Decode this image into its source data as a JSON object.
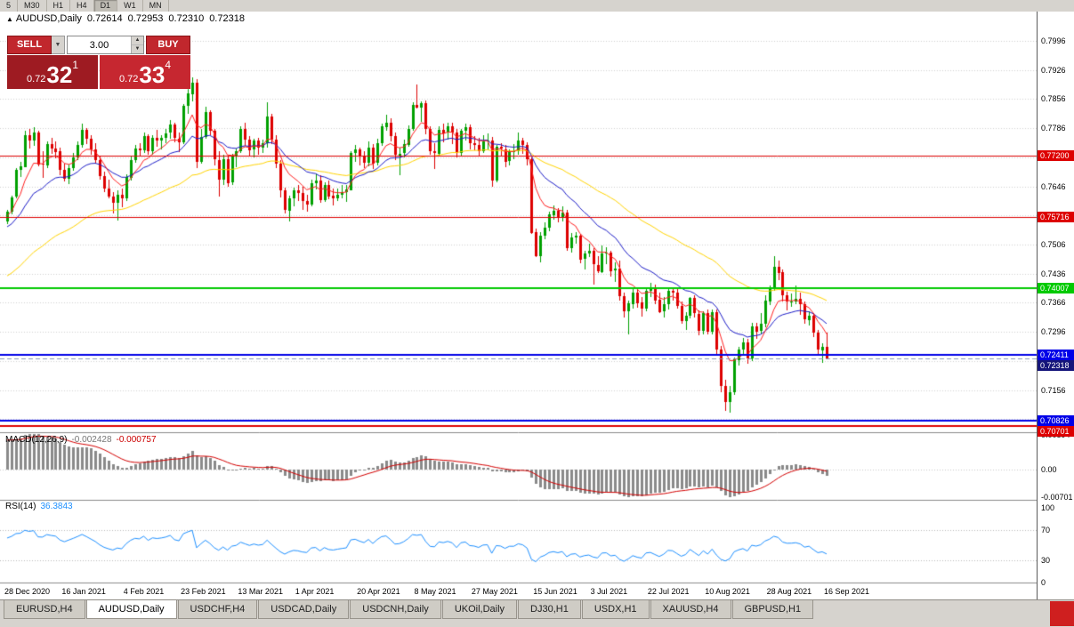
{
  "toolbar": {
    "timeframes": [
      "5",
      "M30",
      "H1",
      "H4",
      "D1",
      "W1",
      "MN"
    ],
    "active": "D1"
  },
  "chart_header": {
    "expander": "▲",
    "symbol_period": "AUDUSD,Daily",
    "open": "0.72614",
    "high": "0.72953",
    "low": "0.72310",
    "close": "0.72318"
  },
  "one_click": {
    "sell_label": "SELL",
    "buy_label": "BUY",
    "volume": "3.00",
    "dropdown_glyph": "▼",
    "spin_up": "▲",
    "spin_down": "▼",
    "sell_price": {
      "prefix": "0.72",
      "big": "32",
      "sup": "1"
    },
    "buy_price": {
      "prefix": "0.72",
      "big": "33",
      "sup": "4"
    },
    "colors": {
      "sell_tile": "#9e1b22",
      "buy_tile": "#c62730",
      "button": "#c1272d"
    }
  },
  "price_axis": {
    "gridlines": [
      0.7996,
      0.7926,
      0.7856,
      0.7786,
      0.7716,
      0.7646,
      0.7576,
      0.7506,
      0.7436,
      0.7366,
      0.7296,
      0.7226,
      0.7156,
      0.7086
    ]
  },
  "levels": [
    {
      "value": 0.772,
      "label": "0.77200",
      "color": "#dd0000",
      "width": 1
    },
    {
      "value": 0.75716,
      "label": "0.75716",
      "color": "#dd0000",
      "width": 1
    },
    {
      "value": 0.74007,
      "label": "0.74007",
      "color": "#00ca00",
      "width": 2
    },
    {
      "value": 0.72411,
      "label": "0.72411",
      "color": "#0000e8",
      "width": 2
    },
    {
      "value": 0.72318,
      "label": "0.72318",
      "color": "#8899bb",
      "width": 1,
      "dash": true,
      "label_bg": "#15157a",
      "current": true
    },
    {
      "value": 0.70826,
      "label": "0.70826",
      "color": "#0000e8",
      "width": 2
    },
    {
      "value": 0.70701,
      "label": "0.70701",
      "color": "#dd0000",
      "width": 2
    }
  ],
  "indicator_macd": {
    "name": "MACD(12,26,9)",
    "value_main": "-0.002428",
    "value_signal": "-0.000757",
    "axis": [
      {
        "label": "0.00894",
        "value": 0.00894
      },
      {
        "label": "0.00",
        "value": 0
      },
      {
        "label": "-0.00701",
        "value": -0.00701
      }
    ],
    "colors": {
      "histogram": "#8a8a8a",
      "signal": "#d40000"
    }
  },
  "indicator_rsi": {
    "name": "RSI(14)",
    "value": "36.3843",
    "axis": [
      {
        "label": "100",
        "value": 100
      },
      {
        "label": "70",
        "value": 70
      },
      {
        "label": "30",
        "value": 30
      },
      {
        "label": "0",
        "value": 0
      }
    ],
    "levels": [
      70,
      30
    ],
    "color": "#1e90ff"
  },
  "time_axis": {
    "labels": [
      "28 Dec 2020",
      "16 Jan 2021",
      "4 Feb 2021",
      "23 Feb 2021",
      "13 Mar 2021",
      "1 Apr 2021",
      "20 Apr 2021",
      "8 May 2021",
      "27 May 2021",
      "15 Jun 2021",
      "3 Jul 2021",
      "22 Jul 2021",
      "10 Aug 2021",
      "28 Aug 2021",
      "16 Sep 2021"
    ]
  },
  "tabs": {
    "items": [
      "EURUSD,H4",
      "AUDUSD,Daily",
      "USDCHF,H4",
      "USDCAD,Daily",
      "USDCNH,Daily",
      "UKOil,Daily",
      "DJ30,H1",
      "USDX,H1",
      "XAUUSD,H4",
      "GBPUSD,H1"
    ],
    "active_index": 1,
    "corner_color": "#cf1f1f"
  },
  "chart_data": {
    "type": "candlestick",
    "symbol": "AUDUSD",
    "timeframe": "Daily",
    "price_range": {
      "top": 0.80666,
      "bottom": 0.70546
    },
    "candle_colors": {
      "up": "#00a000",
      "down": "#dd0000"
    },
    "moving_averages": [
      {
        "period": 55,
        "color": "#ffd400",
        "seed_offset": -0.016,
        "width": 1
      },
      {
        "period": 20,
        "color": "#1c1cc8",
        "seed_offset": -0.004,
        "width": 1
      },
      {
        "period": 8,
        "color": "#ff1f1f",
        "seed_offset": -0.0012,
        "width": 1
      }
    ],
    "macd_seed": {
      "fast": -0.0025,
      "slow": -0.0105
    },
    "rsi_seed": {
      "gain": 0.0028,
      "loss": 0.0019
    },
    "ohlc": [
      [
        0.7562,
        0.759,
        0.7556,
        0.7585
      ],
      [
        0.7585,
        0.7624,
        0.758,
        0.762
      ],
      [
        0.762,
        0.769,
        0.7618,
        0.7685
      ],
      [
        0.7685,
        0.7706,
        0.767,
        0.7694
      ],
      [
        0.7694,
        0.7779,
        0.7692,
        0.777
      ],
      [
        0.777,
        0.7784,
        0.7736,
        0.7757
      ],
      [
        0.7757,
        0.7789,
        0.7745,
        0.7776
      ],
      [
        0.7776,
        0.778,
        0.7694,
        0.77
      ],
      [
        0.77,
        0.773,
        0.7666,
        0.7697
      ],
      [
        0.7697,
        0.7755,
        0.769,
        0.7748
      ],
      [
        0.7748,
        0.7763,
        0.7725,
        0.7738
      ],
      [
        0.7738,
        0.7754,
        0.7714,
        0.773
      ],
      [
        0.773,
        0.774,
        0.7674,
        0.7685
      ],
      [
        0.7685,
        0.7701,
        0.7659,
        0.7664
      ],
      [
        0.7664,
        0.7698,
        0.7652,
        0.769
      ],
      [
        0.769,
        0.7726,
        0.7684,
        0.7716
      ],
      [
        0.7716,
        0.7755,
        0.771,
        0.7746
      ],
      [
        0.7746,
        0.7797,
        0.774,
        0.7782
      ],
      [
        0.7782,
        0.7786,
        0.7748,
        0.776
      ],
      [
        0.776,
        0.777,
        0.7722,
        0.7735
      ],
      [
        0.7735,
        0.7749,
        0.77,
        0.7709
      ],
      [
        0.7709,
        0.772,
        0.7662,
        0.7671
      ],
      [
        0.7671,
        0.7682,
        0.7632,
        0.764
      ],
      [
        0.764,
        0.7662,
        0.7616,
        0.7621
      ],
      [
        0.7621,
        0.7633,
        0.7581,
        0.7605
      ],
      [
        0.7605,
        0.7636,
        0.7564,
        0.7625
      ],
      [
        0.7625,
        0.764,
        0.7596,
        0.7616
      ],
      [
        0.7616,
        0.7674,
        0.761,
        0.7668
      ],
      [
        0.7668,
        0.7717,
        0.766,
        0.771
      ],
      [
        0.771,
        0.7745,
        0.7703,
        0.7737
      ],
      [
        0.7737,
        0.7751,
        0.7718,
        0.7732
      ],
      [
        0.7732,
        0.7775,
        0.7726,
        0.7767
      ],
      [
        0.7767,
        0.7771,
        0.7722,
        0.773
      ],
      [
        0.773,
        0.777,
        0.7724,
        0.7762
      ],
      [
        0.7762,
        0.7781,
        0.774,
        0.7756
      ],
      [
        0.7756,
        0.777,
        0.7735,
        0.7763
      ],
      [
        0.7763,
        0.7784,
        0.775,
        0.7774
      ],
      [
        0.7774,
        0.7805,
        0.776,
        0.7794
      ],
      [
        0.7794,
        0.78,
        0.7752,
        0.7761
      ],
      [
        0.7761,
        0.7775,
        0.7728,
        0.7752
      ],
      [
        0.7752,
        0.7845,
        0.7748,
        0.784
      ],
      [
        0.784,
        0.788,
        0.782,
        0.7869
      ],
      [
        0.7869,
        0.7908,
        0.785,
        0.7896
      ],
      [
        0.7896,
        0.7905,
        0.7692,
        0.7706
      ],
      [
        0.7706,
        0.7784,
        0.77,
        0.7765
      ],
      [
        0.7765,
        0.7838,
        0.776,
        0.7824
      ],
      [
        0.7824,
        0.783,
        0.777,
        0.7779
      ],
      [
        0.7779,
        0.7785,
        0.7698,
        0.771
      ],
      [
        0.771,
        0.773,
        0.7621,
        0.7663
      ],
      [
        0.7663,
        0.7722,
        0.765,
        0.7712
      ],
      [
        0.7712,
        0.772,
        0.7646,
        0.7655
      ],
      [
        0.7655,
        0.7725,
        0.765,
        0.7717
      ],
      [
        0.7717,
        0.7738,
        0.7694,
        0.773
      ],
      [
        0.773,
        0.779,
        0.7725,
        0.7784
      ],
      [
        0.7784,
        0.78,
        0.7745,
        0.7759
      ],
      [
        0.7759,
        0.7768,
        0.772,
        0.7734
      ],
      [
        0.7734,
        0.776,
        0.7716,
        0.7756
      ],
      [
        0.7756,
        0.7762,
        0.7722,
        0.7739
      ],
      [
        0.7739,
        0.7758,
        0.7726,
        0.7749
      ],
      [
        0.7749,
        0.7849,
        0.774,
        0.7814
      ],
      [
        0.7814,
        0.782,
        0.7748,
        0.7758
      ],
      [
        0.7758,
        0.777,
        0.769,
        0.77
      ],
      [
        0.77,
        0.771,
        0.762,
        0.7636
      ],
      [
        0.7636,
        0.7644,
        0.7582,
        0.7589
      ],
      [
        0.7589,
        0.7624,
        0.7562,
        0.7618
      ],
      [
        0.7618,
        0.7644,
        0.76,
        0.7637
      ],
      [
        0.7637,
        0.765,
        0.7612,
        0.763
      ],
      [
        0.763,
        0.7645,
        0.759,
        0.7611
      ],
      [
        0.7611,
        0.7626,
        0.7585,
        0.7602
      ],
      [
        0.7602,
        0.7662,
        0.7598,
        0.7654
      ],
      [
        0.7654,
        0.7678,
        0.764,
        0.766
      ],
      [
        0.766,
        0.7672,
        0.7605,
        0.7613
      ],
      [
        0.7613,
        0.7655,
        0.7608,
        0.765
      ],
      [
        0.765,
        0.766,
        0.7616,
        0.7623
      ],
      [
        0.7623,
        0.764,
        0.76,
        0.7616
      ],
      [
        0.7616,
        0.764,
        0.761,
        0.7625
      ],
      [
        0.7625,
        0.765,
        0.7618,
        0.7632
      ],
      [
        0.7632,
        0.765,
        0.761,
        0.7638
      ],
      [
        0.7638,
        0.773,
        0.7635,
        0.7727
      ],
      [
        0.7727,
        0.7745,
        0.7705,
        0.7735
      ],
      [
        0.7735,
        0.774,
        0.7697,
        0.7717
      ],
      [
        0.7717,
        0.773,
        0.769,
        0.7703
      ],
      [
        0.7703,
        0.7755,
        0.7696,
        0.774
      ],
      [
        0.774,
        0.7748,
        0.7688,
        0.7701
      ],
      [
        0.7701,
        0.776,
        0.7695,
        0.7749
      ],
      [
        0.7749,
        0.7798,
        0.7745,
        0.779
      ],
      [
        0.779,
        0.7818,
        0.778,
        0.78
      ],
      [
        0.78,
        0.781,
        0.7755,
        0.7767
      ],
      [
        0.7767,
        0.7776,
        0.771,
        0.7721
      ],
      [
        0.7721,
        0.774,
        0.7673,
        0.7725
      ],
      [
        0.7725,
        0.7758,
        0.7715,
        0.7747
      ],
      [
        0.7747,
        0.7792,
        0.774,
        0.7785
      ],
      [
        0.7785,
        0.7848,
        0.778,
        0.7843
      ],
      [
        0.7843,
        0.7891,
        0.7834,
        0.7837
      ],
      [
        0.7837,
        0.785,
        0.78,
        0.7847
      ],
      [
        0.7847,
        0.7852,
        0.777,
        0.7785
      ],
      [
        0.7785,
        0.779,
        0.7722,
        0.7731
      ],
      [
        0.7731,
        0.775,
        0.7688,
        0.7726
      ],
      [
        0.7726,
        0.779,
        0.772,
        0.7783
      ],
      [
        0.7783,
        0.7796,
        0.7752,
        0.7775
      ],
      [
        0.7775,
        0.78,
        0.776,
        0.779
      ],
      [
        0.779,
        0.78,
        0.7748,
        0.7776
      ],
      [
        0.7776,
        0.7784,
        0.7715,
        0.7726
      ],
      [
        0.7726,
        0.7785,
        0.772,
        0.778
      ],
      [
        0.778,
        0.7797,
        0.7756,
        0.7789
      ],
      [
        0.7789,
        0.7795,
        0.7735,
        0.7751
      ],
      [
        0.7751,
        0.7766,
        0.7732,
        0.7746
      ],
      [
        0.7746,
        0.7762,
        0.7718,
        0.7731
      ],
      [
        0.7731,
        0.7769,
        0.7726,
        0.7754
      ],
      [
        0.7754,
        0.7774,
        0.7736,
        0.7757
      ],
      [
        0.7757,
        0.7764,
        0.7645,
        0.766
      ],
      [
        0.766,
        0.7745,
        0.7655,
        0.7741
      ],
      [
        0.7741,
        0.775,
        0.772,
        0.7736
      ],
      [
        0.7736,
        0.7745,
        0.7692,
        0.7707
      ],
      [
        0.7707,
        0.7735,
        0.7697,
        0.773
      ],
      [
        0.773,
        0.7748,
        0.7712,
        0.773
      ],
      [
        0.773,
        0.7775,
        0.7722,
        0.7756
      ],
      [
        0.7756,
        0.7762,
        0.7724,
        0.7746
      ],
      [
        0.7746,
        0.7752,
        0.7696,
        0.7712
      ],
      [
        0.7712,
        0.7715,
        0.753,
        0.7535
      ],
      [
        0.7535,
        0.7545,
        0.7476,
        0.7478
      ],
      [
        0.7478,
        0.7535,
        0.7462,
        0.7527
      ],
      [
        0.7527,
        0.756,
        0.752,
        0.7546
      ],
      [
        0.7546,
        0.7586,
        0.754,
        0.7578
      ],
      [
        0.7578,
        0.76,
        0.7566,
        0.7588
      ],
      [
        0.7588,
        0.7594,
        0.756,
        0.7571
      ],
      [
        0.7571,
        0.7598,
        0.7562,
        0.7583
      ],
      [
        0.7583,
        0.759,
        0.7492,
        0.7497
      ],
      [
        0.7497,
        0.7534,
        0.7486,
        0.7523
      ],
      [
        0.7523,
        0.7536,
        0.7508,
        0.7528
      ],
      [
        0.7528,
        0.7532,
        0.7462,
        0.7471
      ],
      [
        0.7471,
        0.749,
        0.7445,
        0.7484
      ],
      [
        0.7484,
        0.7508,
        0.7476,
        0.749
      ],
      [
        0.749,
        0.7497,
        0.741,
        0.7457
      ],
      [
        0.7457,
        0.7478,
        0.7438,
        0.7441
      ],
      [
        0.7441,
        0.7503,
        0.7436,
        0.7485
      ],
      [
        0.7485,
        0.75,
        0.746,
        0.7487
      ],
      [
        0.7487,
        0.7492,
        0.743,
        0.7443
      ],
      [
        0.7443,
        0.7464,
        0.7416,
        0.7448
      ],
      [
        0.7448,
        0.7467,
        0.737,
        0.7381
      ],
      [
        0.7381,
        0.739,
        0.733,
        0.7344
      ],
      [
        0.7344,
        0.7372,
        0.729,
        0.7364
      ],
      [
        0.7364,
        0.7398,
        0.7352,
        0.7391
      ],
      [
        0.7391,
        0.74,
        0.7356,
        0.7366
      ],
      [
        0.7366,
        0.738,
        0.7332,
        0.7352
      ],
      [
        0.7352,
        0.7402,
        0.7346,
        0.7395
      ],
      [
        0.7395,
        0.7415,
        0.738,
        0.74
      ],
      [
        0.74,
        0.741,
        0.7362,
        0.7373
      ],
      [
        0.7373,
        0.739,
        0.734,
        0.7344
      ],
      [
        0.7344,
        0.738,
        0.733,
        0.7362
      ],
      [
        0.7362,
        0.7404,
        0.735,
        0.7395
      ],
      [
        0.7395,
        0.74,
        0.7372,
        0.7391
      ],
      [
        0.7391,
        0.7398,
        0.735,
        0.7358
      ],
      [
        0.7358,
        0.737,
        0.7316,
        0.7322
      ],
      [
        0.7322,
        0.7344,
        0.7302,
        0.7335
      ],
      [
        0.7335,
        0.738,
        0.7328,
        0.7377
      ],
      [
        0.7377,
        0.7384,
        0.733,
        0.734
      ],
      [
        0.734,
        0.7348,
        0.7288,
        0.7299
      ],
      [
        0.7299,
        0.7345,
        0.729,
        0.7341
      ],
      [
        0.7341,
        0.735,
        0.729,
        0.7296
      ],
      [
        0.7296,
        0.735,
        0.729,
        0.7344
      ],
      [
        0.7344,
        0.735,
        0.724,
        0.7254
      ],
      [
        0.7254,
        0.7262,
        0.715,
        0.7166
      ],
      [
        0.7166,
        0.718,
        0.7106,
        0.7127
      ],
      [
        0.7127,
        0.7165,
        0.71,
        0.715
      ],
      [
        0.715,
        0.7235,
        0.7145,
        0.7229
      ],
      [
        0.7229,
        0.726,
        0.7216,
        0.7254
      ],
      [
        0.7254,
        0.7282,
        0.7244,
        0.7271
      ],
      [
        0.7271,
        0.728,
        0.722,
        0.7232
      ],
      [
        0.7232,
        0.7318,
        0.7226,
        0.731
      ],
      [
        0.731,
        0.7318,
        0.728,
        0.7297
      ],
      [
        0.7297,
        0.7341,
        0.729,
        0.7315
      ],
      [
        0.7315,
        0.7385,
        0.7308,
        0.7371
      ],
      [
        0.7371,
        0.7408,
        0.736,
        0.74
      ],
      [
        0.74,
        0.7478,
        0.7395,
        0.7453
      ],
      [
        0.7453,
        0.7468,
        0.7422,
        0.7439
      ],
      [
        0.7439,
        0.7446,
        0.737,
        0.7384
      ],
      [
        0.7384,
        0.7392,
        0.7346,
        0.7368
      ],
      [
        0.7368,
        0.7388,
        0.7355,
        0.7369
      ],
      [
        0.7369,
        0.7407,
        0.7362,
        0.7375
      ],
      [
        0.7375,
        0.739,
        0.7336,
        0.7362
      ],
      [
        0.7362,
        0.737,
        0.7316,
        0.7325
      ],
      [
        0.7325,
        0.7346,
        0.7312,
        0.7335
      ],
      [
        0.7335,
        0.7341,
        0.7284,
        0.7294
      ],
      [
        0.7294,
        0.73,
        0.7242,
        0.7253
      ],
      [
        0.7253,
        0.7268,
        0.722,
        0.7261
      ],
      [
        0.7261,
        0.7295,
        0.7231,
        0.7232
      ]
    ]
  }
}
